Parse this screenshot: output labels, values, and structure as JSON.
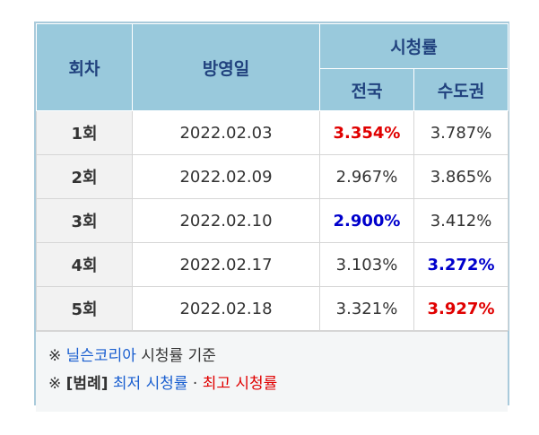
{
  "header": {
    "episode": "회차",
    "air_date": "방영일",
    "ratings": "시청률",
    "nationwide": "전국",
    "capital": "수도권"
  },
  "rows": [
    {
      "episode": "1회",
      "date": "2022.02.03",
      "nationwide": "3.354%",
      "capital": "3.787%",
      "nationwide_mark": "max",
      "capital_mark": ""
    },
    {
      "episode": "2회",
      "date": "2022.02.09",
      "nationwide": "2.967%",
      "capital": "3.865%",
      "nationwide_mark": "",
      "capital_mark": ""
    },
    {
      "episode": "3회",
      "date": "2022.02.10",
      "nationwide": "2.900%",
      "capital": "3.412%",
      "nationwide_mark": "min",
      "capital_mark": ""
    },
    {
      "episode": "4회",
      "date": "2022.02.17",
      "nationwide": "3.103%",
      "capital": "3.272%",
      "nationwide_mark": "",
      "capital_mark": "min"
    },
    {
      "episode": "5회",
      "date": "2022.02.18",
      "nationwide": "3.321%",
      "capital": "3.927%",
      "nationwide_mark": "",
      "capital_mark": "max"
    }
  ],
  "notes": {
    "line1_symbol": "※",
    "line1_source": "닐슨코리아",
    "line1_rest": "시청률 기준",
    "line2_symbol": "※",
    "line2_legend": "[범례]",
    "line2_min": "최저 시청률",
    "line2_sep": "·",
    "line2_max": "최고 시청률"
  },
  "colors": {
    "header_bg": "#99c9dc",
    "header_text": "#21427e",
    "max": "#e00000",
    "min": "#0000cc"
  }
}
